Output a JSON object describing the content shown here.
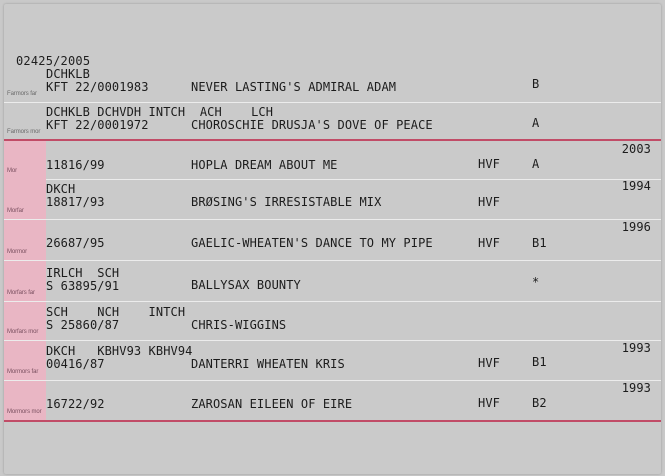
{
  "registration_header": "02425/2005",
  "rows": [
    {
      "role": "Farmors far",
      "titles": "DCHKLB",
      "reg": "KFT 22/0001983",
      "name": "NEVER LASTING'S ADMIRAL ADAM",
      "grade": "",
      "hd": "B",
      "year": ""
    },
    {
      "role": "Farmors mor",
      "titles": "DCHKLB DCHVDH INTCH  ACH    LCH",
      "reg": "KFT 22/0001972",
      "name": "CHOROSCHIE DRUSJA'S DOVE OF PEACE",
      "grade": "",
      "hd": "A",
      "year": ""
    },
    {
      "role": "Mor",
      "titles": "",
      "reg": "11816/99",
      "name": "HOPLA DREAM ABOUT ME",
      "grade": "HVF",
      "hd": "A",
      "year": "2003"
    },
    {
      "role": "Morfar",
      "titles": "DKCH",
      "reg": "18817/93",
      "name": "BRØSING'S IRRESISTABLE MIX",
      "grade": "HVF",
      "hd": "",
      "year": "1994"
    },
    {
      "role": "Mormor",
      "titles": "",
      "reg": "26687/95",
      "name": "GAELIC-WHEATEN'S DANCE TO MY PIPE",
      "grade": "HVF",
      "hd": "B1",
      "year": "1996"
    },
    {
      "role": "Morfars far",
      "titles": "IRLCH  SCH",
      "reg": "S 63895/91",
      "name": "BALLYSAX BOUNTY",
      "grade": "",
      "hd": "*",
      "year": ""
    },
    {
      "role": "Morfars mor",
      "titles": "SCH    NCH    INTCH",
      "reg": "S 25860/87",
      "name": "CHRIS-WIGGINS",
      "grade": "",
      "hd": "",
      "year": ""
    },
    {
      "role": "Mormors far",
      "titles": "DKCH   KBHV93 KBHV94",
      "reg": "00416/87",
      "name": "DANTERRI WHEATEN KRIS",
      "grade": "HVF",
      "hd": "B1",
      "year": "1993"
    },
    {
      "role": "Mormors mor",
      "titles": "",
      "reg": "16722/92",
      "name": "ZAROSAN EILEEN OF EIRE",
      "grade": "HVF",
      "hd": "B2",
      "year": "1993"
    }
  ],
  "colors": {
    "dam_band": "#e9b6c4",
    "dam_rule": "#c14c67",
    "card": "#cacaca"
  }
}
